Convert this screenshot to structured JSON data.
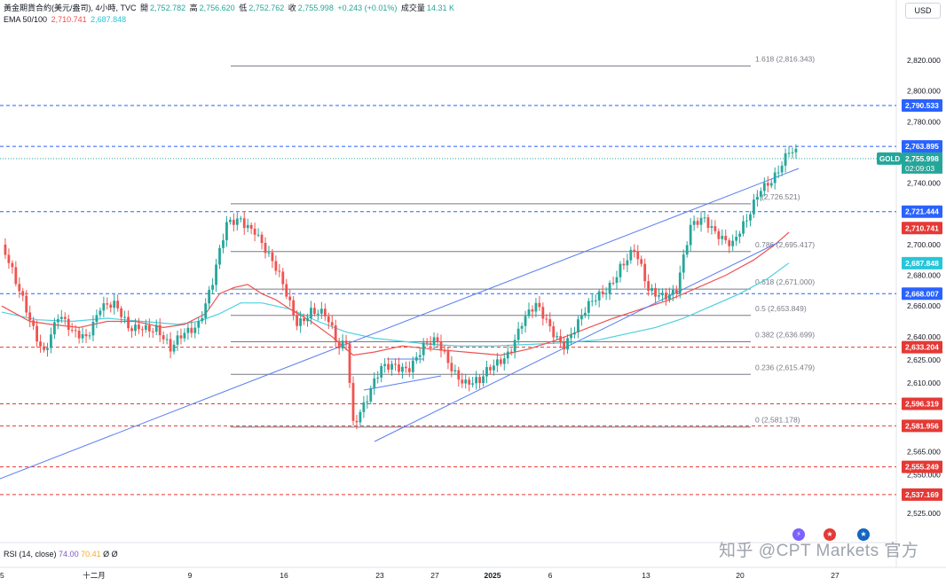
{
  "header": {
    "symbol": "黃金期貨合約(美元/盎司), 4小時, TVC",
    "open_label": "開",
    "open": "2,752.782",
    "high_label": "高",
    "high": "2,756.620",
    "low_label": "低",
    "low": "2,752.762",
    "close_label": "收",
    "close": "2,755.998",
    "change": "+0.243 (+0.01%)",
    "volume_label": "成交量",
    "volume": "14.31 K",
    "ema_label": "EMA 50/100",
    "ema50": "2,710.741",
    "ema100": "2,687.848"
  },
  "currency_button": "USD",
  "rsi": {
    "label": "RSI (14, close)",
    "v1": "74.00",
    "v2": "70.41",
    "v3": "Ø",
    "v4": "Ø"
  },
  "watermark": "知乎 @CPT Markets 官方",
  "symbol_tag": "GOLD",
  "countdown": "02:09:03",
  "colors": {
    "up": "#26a69a",
    "down": "#ef5350",
    "ema50": "#ef5350",
    "ema100": "#4dd0e1",
    "trend": "#5b7ff0",
    "fib": "#787b86",
    "res_line": "#2962ff",
    "sup_line": "#e53935"
  },
  "chart_data": {
    "type": "candlestick",
    "ylim": [
      2520,
      2830
    ],
    "price_ticks": [
      "2,820.000",
      "2,800.000",
      "2,780.000",
      "2,740.000",
      "2,700.000",
      "2,680.000",
      "2,660.000",
      "2,640.000",
      "2,625.000",
      "2,610.000",
      "2,565.000",
      "2,550.000",
      "2,525.000"
    ],
    "price_tick_values": [
      2820,
      2800,
      2780,
      2740,
      2700,
      2680,
      2660,
      2640,
      2625,
      2610,
      2565,
      2550,
      2525
    ],
    "x_ticks": [
      "5",
      "十二月",
      "9",
      "16",
      "23",
      "27",
      "2025",
      "6",
      "13",
      "20",
      "27"
    ],
    "fibonacci": [
      {
        "label": "1.618 (2,816.343)",
        "value": 2816.343
      },
      {
        "label": "1 (2,726.521)",
        "value": 2726.521
      },
      {
        "label": "0.786 (2,695.417)",
        "value": 2695.417
      },
      {
        "label": "0.618 (2,671.000)",
        "value": 2671.0
      },
      {
        "label": "0.5 (2,653.849)",
        "value": 2653.849
      },
      {
        "label": "0.382 (2,636.699)",
        "value": 2636.699
      },
      {
        "label": "0.236 (2,615.479)",
        "value": 2615.479
      },
      {
        "label": "0 (2,581.178)",
        "value": 2581.178
      }
    ],
    "resistance_levels": [
      {
        "label": "2,790.533",
        "value": 2790.533
      },
      {
        "label": "2,763.895",
        "value": 2763.895
      },
      {
        "label": "2,721.444",
        "value": 2721.444
      },
      {
        "label": "2,668.007",
        "value": 2668.007
      }
    ],
    "support_levels": [
      {
        "label": "2,633.204",
        "value": 2633.204
      },
      {
        "label": "2,596.319",
        "value": 2596.319
      },
      {
        "label": "2,581.956",
        "value": 2581.956
      },
      {
        "label": "2,555.249",
        "value": 2555.249
      },
      {
        "label": "2,537.169",
        "value": 2537.169
      }
    ],
    "current_price": {
      "label": "2,755.998",
      "value": 2755.998
    },
    "ema50_tag": {
      "label": "2,710.741",
      "value": 2710.741
    },
    "ema100_tag": {
      "label": "2,687.848",
      "value": 2687.848
    },
    "candle_keyframes": [
      [
        0,
        2700
      ],
      [
        4,
        2672
      ],
      [
        8,
        2652
      ],
      [
        12,
        2633
      ],
      [
        16,
        2652
      ],
      [
        20,
        2640
      ],
      [
        24,
        2642
      ],
      [
        28,
        2662
      ],
      [
        32,
        2658
      ],
      [
        36,
        2644
      ],
      [
        40,
        2650
      ],
      [
        44,
        2646
      ],
      [
        48,
        2628
      ],
      [
        52,
        2643
      ],
      [
        56,
        2652
      ],
      [
        60,
        2675
      ],
      [
        64,
        2710
      ],
      [
        68,
        2718
      ],
      [
        72,
        2712
      ],
      [
        76,
        2690
      ],
      [
        80,
        2672
      ],
      [
        84,
        2652
      ],
      [
        88,
        2658
      ],
      [
        92,
        2651
      ],
      [
        96,
        2632
      ],
      [
        98,
        2640
      ],
      [
        100,
        2587
      ],
      [
        104,
        2600
      ],
      [
        108,
        2616
      ],
      [
        112,
        2622
      ],
      [
        116,
        2623
      ],
      [
        120,
        2632
      ],
      [
        124,
        2634
      ],
      [
        128,
        2622
      ],
      [
        132,
        2612
      ],
      [
        136,
        2608
      ],
      [
        140,
        2620
      ],
      [
        144,
        2632
      ],
      [
        148,
        2650
      ],
      [
        152,
        2657
      ],
      [
        156,
        2646
      ],
      [
        160,
        2638
      ],
      [
        164,
        2648
      ],
      [
        168,
        2660
      ],
      [
        172,
        2672
      ],
      [
        176,
        2688
      ],
      [
        180,
        2694
      ],
      [
        184,
        2668
      ],
      [
        188,
        2670
      ],
      [
        192,
        2672
      ],
      [
        196,
        2708
      ],
      [
        200,
        2716
      ],
      [
        204,
        2710
      ],
      [
        208,
        2700
      ],
      [
        212,
        2712
      ],
      [
        216,
        2738
      ],
      [
        220,
        2748
      ],
      [
        224,
        2759
      ],
      [
        226,
        2756
      ]
    ],
    "candle_t_range": [
      0,
      226
    ]
  }
}
